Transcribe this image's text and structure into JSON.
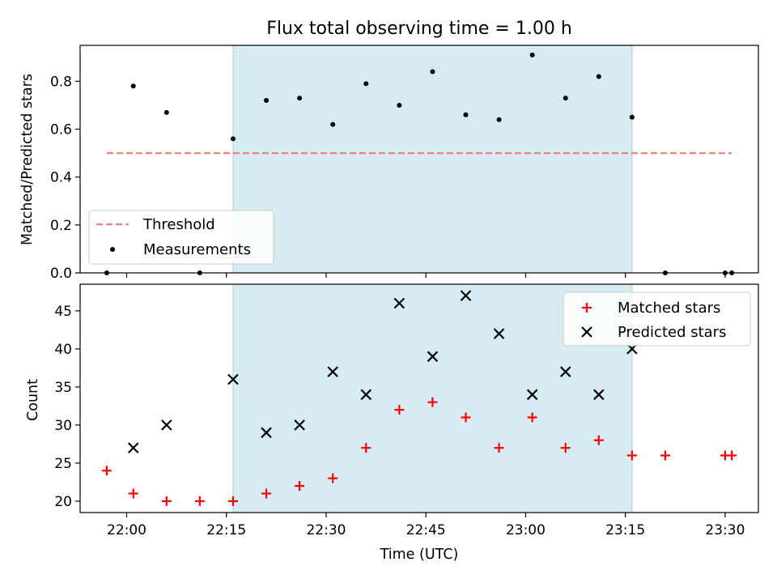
{
  "chart_data": [
    {
      "type": "scatter",
      "title": "Flux total observing time = 1.00 h",
      "xlabel": "",
      "ylabel": "Matched/Predicted stars",
      "ylim": [
        0,
        0.95
      ],
      "yticks": [
        "0.0",
        "0.2",
        "0.4",
        "0.6",
        "0.8"
      ],
      "yticks_values": [
        0,
        0.2,
        0.4,
        0.6,
        0.8
      ],
      "shaded_region": {
        "start": "22:16",
        "end": "23:16",
        "color": "#add8e6"
      },
      "threshold": {
        "name": "Threshold",
        "value": 0.5,
        "x_start": "21:57",
        "x_end": "23:31",
        "color": "#f08080"
      },
      "legend": {
        "location": "lower-left",
        "entries": [
          "Threshold",
          "Measurements"
        ]
      },
      "series": [
        {
          "name": "Measurements",
          "color": "#000000",
          "x": [
            "21:57",
            "22:01",
            "22:06",
            "22:11",
            "22:16",
            "22:21",
            "22:26",
            "22:31",
            "22:36",
            "22:41",
            "22:46",
            "22:51",
            "22:56",
            "23:01",
            "23:06",
            "23:11",
            "23:16",
            "23:21",
            "23:30",
            "23:31"
          ],
          "y": [
            0.0,
            0.78,
            0.67,
            0.0,
            0.56,
            0.72,
            0.73,
            0.62,
            0.79,
            0.7,
            0.84,
            0.66,
            0.64,
            0.91,
            0.73,
            0.82,
            0.65,
            0.0,
            0.0,
            0.0
          ]
        }
      ],
      "grid": false
    },
    {
      "type": "scatter",
      "title": "",
      "xlabel": "Time (UTC)",
      "ylabel": "Count",
      "xlim": [
        "21:53",
        "23:35"
      ],
      "ylim": [
        18.5,
        48.5
      ],
      "xticks": [
        "22:00",
        "22:15",
        "22:30",
        "22:45",
        "23:00",
        "23:15",
        "23:30"
      ],
      "yticks": [
        "20",
        "25",
        "30",
        "35",
        "40",
        "45"
      ],
      "yticks_values": [
        20,
        25,
        30,
        35,
        40,
        45
      ],
      "shaded_region": {
        "start": "22:16",
        "end": "23:16",
        "color": "#add8e6"
      },
      "legend": {
        "location": "top-right",
        "entries": [
          "Matched stars",
          "Predicted stars"
        ]
      },
      "series": [
        {
          "name": "Matched stars",
          "marker": "plus",
          "color": "#ff0000",
          "x": [
            "21:57",
            "22:01",
            "22:06",
            "22:11",
            "22:16",
            "22:21",
            "22:26",
            "22:31",
            "22:36",
            "22:41",
            "22:46",
            "22:51",
            "22:56",
            "23:01",
            "23:06",
            "23:11",
            "23:16",
            "23:21",
            "23:30",
            "23:31"
          ],
          "y": [
            24,
            21,
            20,
            20,
            20,
            21,
            22,
            23,
            27,
            32,
            33,
            31,
            27,
            31,
            27,
            28,
            26,
            26,
            26,
            26
          ]
        },
        {
          "name": "Predicted stars",
          "marker": "x",
          "color": "#000000",
          "x": [
            "22:01",
            "22:06",
            "22:16",
            "22:21",
            "22:26",
            "22:31",
            "22:36",
            "22:41",
            "22:46",
            "22:51",
            "22:56",
            "23:01",
            "23:06",
            "23:11",
            "23:16"
          ],
          "y": [
            27,
            30,
            36,
            29,
            30,
            37,
            34,
            46,
            39,
            47,
            42,
            34,
            37,
            34,
            40
          ]
        }
      ],
      "grid": false
    }
  ]
}
